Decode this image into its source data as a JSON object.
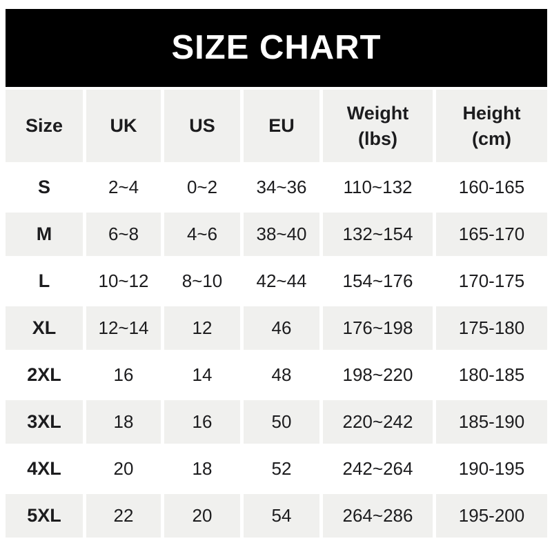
{
  "banner": {
    "title": "SIZE CHART",
    "bg_color": "#000000",
    "text_color": "#ffffff"
  },
  "table": {
    "stripe_color": "#f0f0ee",
    "text_color": "#1c1c1e",
    "columns": [
      "Size",
      "UK",
      "US",
      "EU",
      "Weight\n(lbs)",
      "Height\n(cm)"
    ],
    "column_keys": [
      "size",
      "uk",
      "us",
      "eu",
      "weight-lbs",
      "height-cm"
    ],
    "rows": [
      [
        "S",
        "2~4",
        "0~2",
        "34~36",
        "110~132",
        "160-165"
      ],
      [
        "M",
        "6~8",
        "4~6",
        "38~40",
        "132~154",
        "165-170"
      ],
      [
        "L",
        "10~12",
        "8~10",
        "42~44",
        "154~176",
        "170-175"
      ],
      [
        "XL",
        "12~14",
        "12",
        "46",
        "176~198",
        "175-180"
      ],
      [
        "2XL",
        "16",
        "14",
        "48",
        "198~220",
        "180-185"
      ],
      [
        "3XL",
        "18",
        "16",
        "50",
        "220~242",
        "185-190"
      ],
      [
        "4XL",
        "20",
        "18",
        "52",
        "242~264",
        "190-195"
      ],
      [
        "5XL",
        "22",
        "20",
        "54",
        "264~286",
        "195-200"
      ]
    ]
  },
  "chart_data": {
    "type": "table",
    "title": "SIZE CHART",
    "columns": [
      "Size",
      "UK",
      "US",
      "EU",
      "Weight (lbs)",
      "Height (cm)"
    ],
    "rows": [
      [
        "S",
        "2~4",
        "0~2",
        "34~36",
        "110~132",
        "160-165"
      ],
      [
        "M",
        "6~8",
        "4~6",
        "38~40",
        "132~154",
        "165-170"
      ],
      [
        "L",
        "10~12",
        "8~10",
        "42~44",
        "154~176",
        "170-175"
      ],
      [
        "XL",
        "12~14",
        "12",
        "46",
        "176~198",
        "175-180"
      ],
      [
        "2XL",
        "16",
        "14",
        "48",
        "198~220",
        "180-185"
      ],
      [
        "3XL",
        "18",
        "16",
        "50",
        "220~242",
        "185-190"
      ],
      [
        "4XL",
        "20",
        "18",
        "52",
        "242~264",
        "190-195"
      ],
      [
        "5XL",
        "22",
        "20",
        "54",
        "264~286",
        "195-200"
      ]
    ],
    "layout": {
      "striped_rows": true,
      "header_background": "#f0f0ee",
      "banner_background": "#000000"
    }
  }
}
